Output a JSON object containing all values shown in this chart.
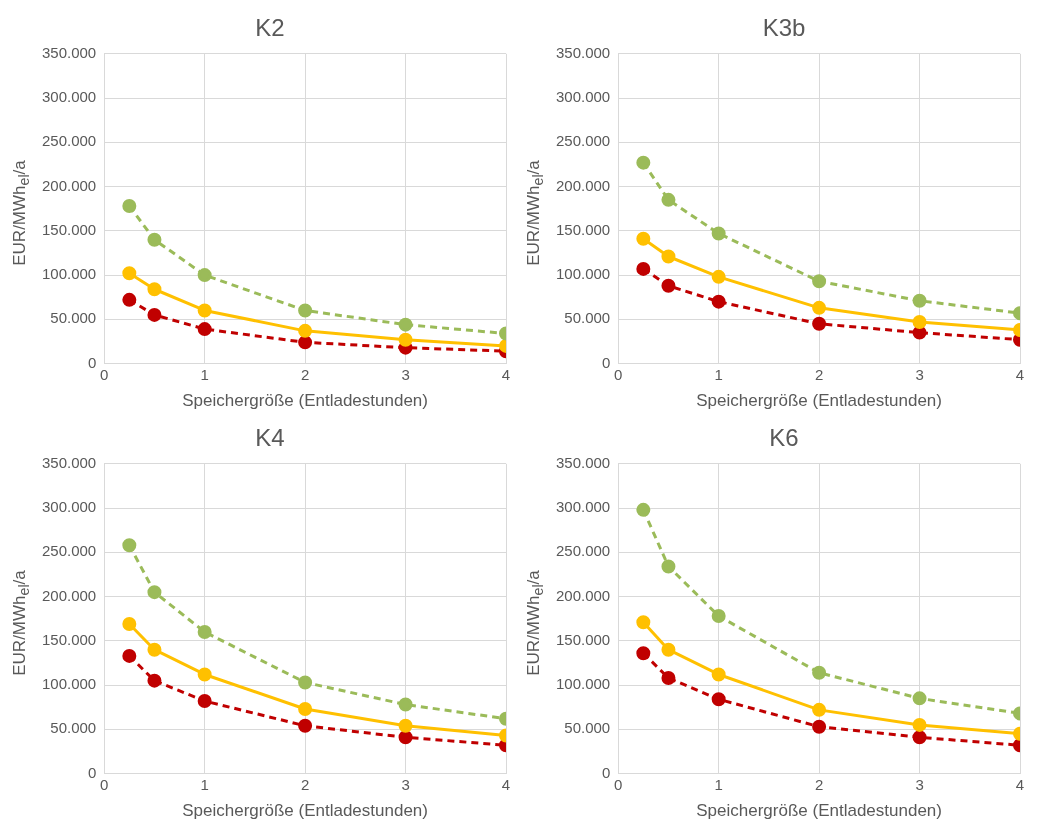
{
  "chart_data": [
    {
      "type": "line",
      "title": "K2",
      "xlabel": "Speichergröße (Entladestunden)",
      "ylabel": "EUR/MWh$_{el}$/a",
      "x": [
        0.25,
        0.5,
        1,
        2,
        3,
        4
      ],
      "xlim": [
        0,
        4
      ],
      "xticks": [
        0,
        1,
        2,
        3,
        4
      ],
      "ylim": [
        0,
        350000
      ],
      "yticks": [
        {
          "value": 0,
          "label": "0"
        },
        {
          "value": 50000,
          "label": "50.000"
        },
        {
          "value": 100000,
          "label": "100.000"
        },
        {
          "value": 150000,
          "label": "150.000"
        },
        {
          "value": 200000,
          "label": "200.000"
        },
        {
          "value": 250000,
          "label": "250.000"
        },
        {
          "value": 300000,
          "label": "300.000"
        },
        {
          "value": 350000,
          "label": "350.000"
        }
      ],
      "grid": true,
      "marker": "circle",
      "series": [
        {
          "color": "#9bbb59",
          "line_style": "dashed",
          "values": [
            178000,
            140000,
            100000,
            60000,
            44000,
            34000
          ]
        },
        {
          "color": "#ffc000",
          "line_style": "solid",
          "values": [
            102000,
            84000,
            60000,
            37000,
            27000,
            20000
          ]
        },
        {
          "color": "#c00000",
          "line_style": "dashed",
          "values": [
            72000,
            55000,
            39000,
            24000,
            18000,
            14000
          ]
        }
      ]
    },
    {
      "type": "line",
      "title": "K3b",
      "xlabel": "Speichergröße (Entladestunden)",
      "ylabel": "EUR/MWh$_{el}$/a",
      "x": [
        0.25,
        0.5,
        1,
        2,
        3,
        4
      ],
      "xlim": [
        0,
        4
      ],
      "xticks": [
        0,
        1,
        2,
        3,
        4
      ],
      "ylim": [
        0,
        350000
      ],
      "yticks": [
        {
          "value": 0,
          "label": "0"
        },
        {
          "value": 50000,
          "label": "50.000"
        },
        {
          "value": 100000,
          "label": "100.000"
        },
        {
          "value": 150000,
          "label": "150.000"
        },
        {
          "value": 200000,
          "label": "200.000"
        },
        {
          "value": 250000,
          "label": "250.000"
        },
        {
          "value": 300000,
          "label": "300.000"
        },
        {
          "value": 350000,
          "label": "350.000"
        }
      ],
      "grid": true,
      "marker": "circle",
      "series": [
        {
          "color": "#9bbb59",
          "line_style": "dashed",
          "values": [
            227000,
            185000,
            147000,
            93000,
            71000,
            57000
          ]
        },
        {
          "color": "#ffc000",
          "line_style": "solid",
          "values": [
            141000,
            121000,
            98000,
            63000,
            47000,
            38000
          ]
        },
        {
          "color": "#c00000",
          "line_style": "dashed",
          "values": [
            107000,
            88000,
            70000,
            45000,
            35000,
            27000
          ]
        }
      ]
    },
    {
      "type": "line",
      "title": "K4",
      "xlabel": "Speichergröße (Entladestunden)",
      "ylabel": "EUR/MWh$_{el}$/a",
      "x": [
        0.25,
        0.5,
        1,
        2,
        3,
        4
      ],
      "xlim": [
        0,
        4
      ],
      "xticks": [
        0,
        1,
        2,
        3,
        4
      ],
      "ylim": [
        0,
        350000
      ],
      "yticks": [
        {
          "value": 0,
          "label": "0"
        },
        {
          "value": 50000,
          "label": "50.000"
        },
        {
          "value": 100000,
          "label": "100.000"
        },
        {
          "value": 150000,
          "label": "150.000"
        },
        {
          "value": 200000,
          "label": "200.000"
        },
        {
          "value": 250000,
          "label": "250.000"
        },
        {
          "value": 300000,
          "label": "300.000"
        },
        {
          "value": 350000,
          "label": "350.000"
        }
      ],
      "grid": true,
      "marker": "circle",
      "series": [
        {
          "color": "#9bbb59",
          "line_style": "dashed",
          "values": [
            258000,
            205000,
            160000,
            103000,
            78000,
            62000
          ]
        },
        {
          "color": "#ffc000",
          "line_style": "solid",
          "values": [
            169000,
            140000,
            112000,
            73000,
            54000,
            43000
          ]
        },
        {
          "color": "#c00000",
          "line_style": "dashed",
          "values": [
            133000,
            105000,
            82000,
            54000,
            41000,
            32000
          ]
        }
      ]
    },
    {
      "type": "line",
      "title": "K6",
      "xlabel": "Speichergröße (Entladestunden)",
      "ylabel": "EUR/MWh$_{el}$/a",
      "x": [
        0.25,
        0.5,
        1,
        2,
        3,
        4
      ],
      "xlim": [
        0,
        4
      ],
      "xticks": [
        0,
        1,
        2,
        3,
        4
      ],
      "ylim": [
        0,
        350000
      ],
      "yticks": [
        {
          "value": 0,
          "label": "0"
        },
        {
          "value": 50000,
          "label": "50.000"
        },
        {
          "value": 100000,
          "label": "100.000"
        },
        {
          "value": 150000,
          "label": "150.000"
        },
        {
          "value": 200000,
          "label": "200.000"
        },
        {
          "value": 250000,
          "label": "250.000"
        },
        {
          "value": 300000,
          "label": "300.000"
        },
        {
          "value": 350000,
          "label": "350.000"
        }
      ],
      "grid": true,
      "marker": "circle",
      "series": [
        {
          "color": "#9bbb59",
          "line_style": "dashed",
          "values": [
            298000,
            234000,
            178000,
            114000,
            85000,
            68000
          ]
        },
        {
          "color": "#ffc000",
          "line_style": "solid",
          "values": [
            171000,
            140000,
            112000,
            72000,
            55000,
            45000
          ]
        },
        {
          "color": "#c00000",
          "line_style": "dashed",
          "values": [
            136000,
            108000,
            84000,
            53000,
            41000,
            32000
          ]
        }
      ]
    }
  ]
}
